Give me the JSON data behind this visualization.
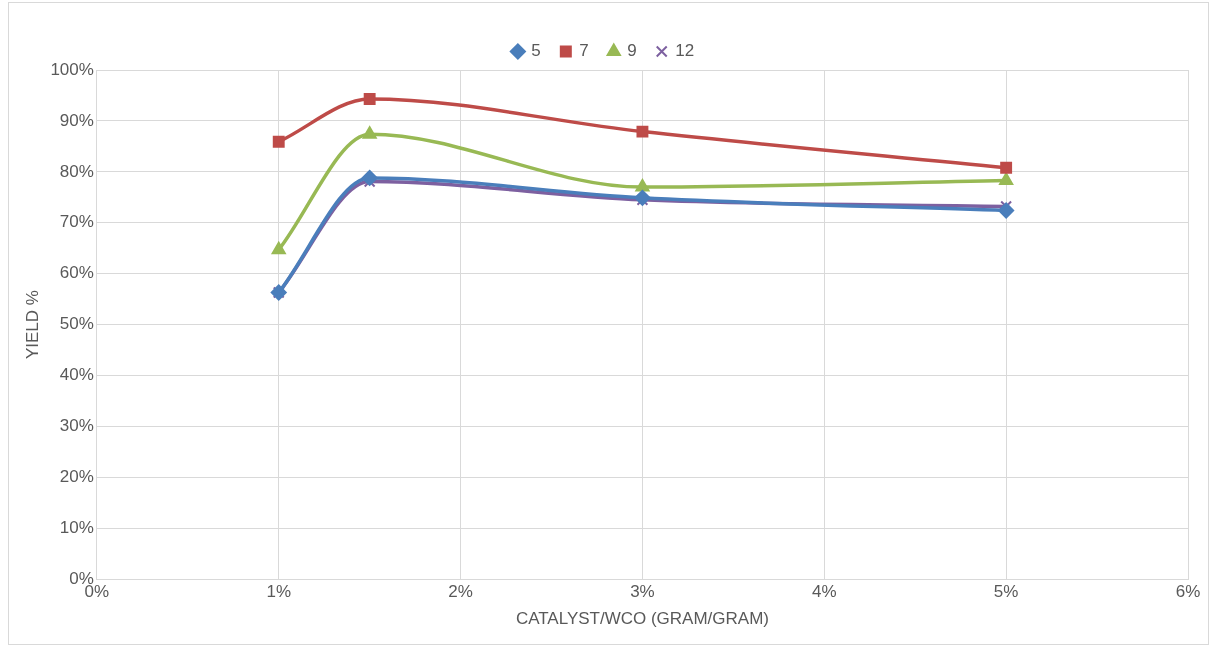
{
  "chart_data": {
    "type": "line",
    "xlabel": "CATALYST/WCO (GRAM/GRAM)",
    "ylabel": "YIELD %",
    "x": [
      1,
      1.5,
      3,
      5
    ],
    "series": [
      {
        "name": "5",
        "color": "#4a7ebb",
        "marker": "diamond",
        "values": [
          56.3,
          78.8,
          74.9,
          72.4
        ]
      },
      {
        "name": "7",
        "color": "#be4b48",
        "marker": "square",
        "values": [
          85.9,
          94.3,
          87.9,
          80.8
        ]
      },
      {
        "name": "9",
        "color": "#98b954",
        "marker": "triangle",
        "values": [
          64.7,
          87.4,
          77,
          78.3
        ]
      },
      {
        "name": "12",
        "color": "#7d60a0",
        "marker": "cross",
        "values": [
          56.3,
          78.1,
          74.5,
          73.2
        ]
      }
    ],
    "xlim": [
      0,
      6
    ],
    "xticks": [
      {
        "value": 0,
        "label": "0%"
      },
      {
        "value": 1,
        "label": "1%"
      },
      {
        "value": 2,
        "label": "2%"
      },
      {
        "value": 3,
        "label": "3%"
      },
      {
        "value": 4,
        "label": "4%"
      },
      {
        "value": 5,
        "label": "5%"
      },
      {
        "value": 6,
        "label": "6%"
      }
    ],
    "ylim": [
      0,
      100
    ],
    "yticks": [
      {
        "value": 0,
        "label": "0%"
      },
      {
        "value": 10,
        "label": "10%"
      },
      {
        "value": 20,
        "label": "20%"
      },
      {
        "value": 30,
        "label": "30%"
      },
      {
        "value": 40,
        "label": "40%"
      },
      {
        "value": 50,
        "label": "50%"
      },
      {
        "value": 60,
        "label": "60%"
      },
      {
        "value": 70,
        "label": "70%"
      },
      {
        "value": 80,
        "label": "80%"
      },
      {
        "value": 90,
        "label": "90%"
      },
      {
        "value": 100,
        "label": "100%"
      }
    ],
    "grid": true,
    "legend": "top",
    "line_style": "solid"
  }
}
